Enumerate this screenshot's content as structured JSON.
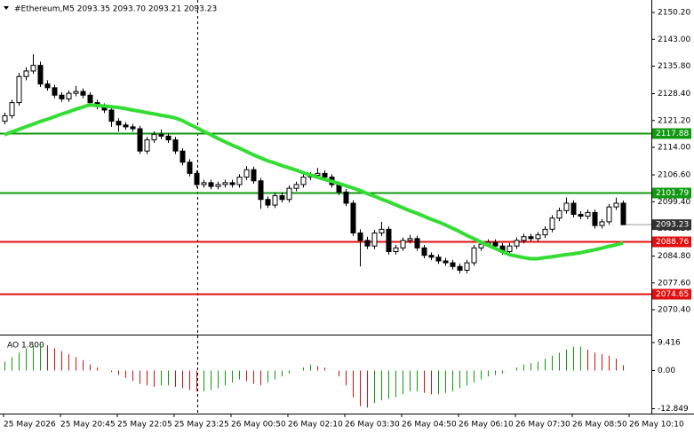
{
  "chart_data": {
    "type": "candlestick",
    "title": "#Ethereum,M5  2093.35 2093.70 2093.21 2093.23",
    "ylim": [
      2063.96,
      2153.55
    ],
    "yticks": [
      {
        "value": 2150.2,
        "label": "2150.20"
      },
      {
        "value": 2143,
        "label": "2143.00"
      },
      {
        "value": 2135.8,
        "label": "2135.80"
      },
      {
        "value": 2128.4,
        "label": "2128.40"
      },
      {
        "value": 2121.2,
        "label": "2121.20"
      },
      {
        "value": 2114,
        "label": "2114.00"
      },
      {
        "value": 2106.6,
        "label": "2106.60"
      },
      {
        "value": 2099.4,
        "label": "2099.40"
      },
      {
        "value": 2092.2,
        "label": "2092.20"
      },
      {
        "value": 2084.8,
        "label": "2084.80"
      },
      {
        "value": 2077.6,
        "label": "2077.60"
      },
      {
        "value": 2070.4,
        "label": "2070.40"
      }
    ],
    "xlabels": [
      "25 May 2026",
      "25 May 20:45",
      "25 May 22:05",
      "25 May 23:25",
      "26 May 00:50",
      "26 May 02:10",
      "26 May 03:30",
      "26 May 04:50",
      "26 May 06:10",
      "26 May 07:30",
      "26 May 08:50",
      "26 May 10:10"
    ],
    "candles": [
      [
        2121,
        2123.3,
        2120.2,
        2122.5
      ],
      [
        2122.5,
        2126.8,
        2121.7,
        2126
      ],
      [
        2126,
        2134,
        2125.2,
        2133
      ],
      [
        2133,
        2135.5,
        2132,
        2134.5
      ],
      [
        2134.5,
        2139,
        2133.7,
        2136
      ],
      [
        2136,
        2137,
        2130.2,
        2131
      ],
      [
        2131,
        2132,
        2129.2,
        2130
      ],
      [
        2130,
        2130.8,
        2127.2,
        2128
      ],
      [
        2128,
        2128.8,
        2126.2,
        2127
      ],
      [
        2127,
        2129.3,
        2126.2,
        2128.5
      ],
      [
        2128.5,
        2130.5,
        2127.7,
        2129
      ],
      [
        2129,
        2129.8,
        2127.2,
        2128
      ],
      [
        2128,
        2128.8,
        2125.2,
        2126
      ],
      [
        2126,
        2126.8,
        2124.2,
        2125
      ],
      [
        2125,
        2125.8,
        2123.2,
        2124
      ],
      [
        2124,
        2124.8,
        2119.5,
        2121
      ],
      [
        2121,
        2121.8,
        2118.2,
        2120
      ],
      [
        2120,
        2120.8,
        2118.7,
        2119.5
      ],
      [
        2119.5,
        2120.3,
        2118.2,
        2119
      ],
      [
        2119,
        2119.8,
        2112.2,
        2113
      ],
      [
        2113,
        2116.8,
        2112.2,
        2116
      ],
      [
        2116,
        2118.3,
        2115.2,
        2117.5
      ],
      [
        2117.5,
        2118.8,
        2116.2,
        2117
      ],
      [
        2117,
        2117.8,
        2115.2,
        2116
      ],
      [
        2116,
        2116.8,
        2112.2,
        2113
      ],
      [
        2113,
        2113.8,
        2109.2,
        2110
      ],
      [
        2110,
        2110.8,
        2106.2,
        2107
      ],
      [
        2107,
        2107.8,
        2103.2,
        2104
      ],
      [
        2104,
        2105.3,
        2103.2,
        2104.5
      ],
      [
        2104.5,
        2105.3,
        2102.7,
        2103.5
      ],
      [
        2103.5,
        2104.8,
        2102.7,
        2104
      ],
      [
        2104,
        2105.3,
        2103.2,
        2104.5
      ],
      [
        2104.5,
        2105.3,
        2103.2,
        2104
      ],
      [
        2104,
        2106.8,
        2103.2,
        2106
      ],
      [
        2106,
        2109,
        2105.2,
        2108
      ],
      [
        2108,
        2108.8,
        2104.2,
        2105
      ],
      [
        2105,
        2105.8,
        2097.5,
        2100
      ],
      [
        2100,
        2100.8,
        2097.7,
        2098.5
      ],
      [
        2098.5,
        2101.8,
        2097.7,
        2101
      ],
      [
        2101,
        2101.8,
        2099.2,
        2100
      ],
      [
        2100,
        2103.8,
        2099.2,
        2103
      ],
      [
        2103,
        2104.8,
        2102.2,
        2104
      ],
      [
        2104,
        2106.8,
        2103.2,
        2106
      ],
      [
        2106,
        2107.3,
        2105.2,
        2106.5
      ],
      [
        2106.5,
        2108.5,
        2105.7,
        2107
      ],
      [
        2107,
        2107.8,
        2105.2,
        2106
      ],
      [
        2106,
        2106.8,
        2103.2,
        2104
      ],
      [
        2104,
        2104.8,
        2101.2,
        2102
      ],
      [
        2102,
        2102.8,
        2098.2,
        2099
      ],
      [
        2099,
        2099.8,
        2090.2,
        2091
      ],
      [
        2091,
        2092,
        2082,
        2089
      ],
      [
        2089,
        2090,
        2086.7,
        2087.5
      ],
      [
        2087.5,
        2091.8,
        2086.7,
        2091
      ],
      [
        2091,
        2094,
        2090.2,
        2092
      ],
      [
        2092,
        2092.8,
        2085.2,
        2086
      ],
      [
        2086,
        2087.8,
        2085.2,
        2087
      ],
      [
        2087,
        2089.8,
        2086.2,
        2089
      ],
      [
        2089,
        2090.5,
        2088.2,
        2089.5
      ],
      [
        2089.5,
        2090.3,
        2086.2,
        2087
      ],
      [
        2087,
        2087.8,
        2084.2,
        2085
      ],
      [
        2085,
        2085.8,
        2083.7,
        2084.5
      ],
      [
        2084.5,
        2085.3,
        2082.7,
        2083.5
      ],
      [
        2083.5,
        2084.3,
        2082.2,
        2083
      ],
      [
        2083,
        2083.8,
        2081.2,
        2082
      ],
      [
        2082,
        2082.8,
        2080.2,
        2081
      ],
      [
        2081,
        2083.8,
        2080.2,
        2083
      ],
      [
        2083,
        2087.8,
        2082.2,
        2087
      ],
      [
        2087,
        2088.8,
        2086.2,
        2088
      ],
      [
        2088,
        2089.3,
        2087.2,
        2088.5
      ],
      [
        2088.5,
        2089.3,
        2086.7,
        2087.5
      ],
      [
        2087.5,
        2088.3,
        2085.2,
        2086
      ],
      [
        2086,
        2088.3,
        2085.2,
        2087.5
      ],
      [
        2087.5,
        2089.8,
        2086.7,
        2089
      ],
      [
        2089,
        2090.8,
        2088.2,
        2090
      ],
      [
        2090,
        2090.8,
        2088.7,
        2089.5
      ],
      [
        2089.5,
        2091.3,
        2088.7,
        2090.5
      ],
      [
        2090.5,
        2092.8,
        2089.7,
        2092
      ],
      [
        2092,
        2095.8,
        2091.2,
        2095
      ],
      [
        2095,
        2097.8,
        2094.2,
        2097
      ],
      [
        2097,
        2100.5,
        2096.2,
        2099
      ],
      [
        2099,
        2099.8,
        2095.2,
        2096
      ],
      [
        2096,
        2096.8,
        2094.7,
        2095.5
      ],
      [
        2095.5,
        2097.3,
        2094.7,
        2096.5
      ],
      [
        2096.5,
        2097.3,
        2092.2,
        2093
      ],
      [
        2093,
        2094.8,
        2092.2,
        2094
      ],
      [
        2094,
        2098.8,
        2093.2,
        2098
      ],
      [
        2098,
        2100.5,
        2097.2,
        2099
      ],
      [
        2099,
        2099.7,
        2093.21,
        2093.23
      ]
    ],
    "ma": [
      2117.4,
      2118.1,
      2118.8,
      2119.5,
      2120.2,
      2120.9,
      2121.5,
      2122.2,
      2122.9,
      2123.5,
      2124.2,
      2124.8,
      2125.4,
      2125.2,
      2125.1,
      2124.9,
      2124.7,
      2124.4,
      2124.0,
      2123.7,
      2123.3,
      2123.0,
      2122.6,
      2122.3,
      2121.9,
      2121.2,
      2120.2,
      2119.3,
      2118.3,
      2117.4,
      2116.4,
      2115.5,
      2114.6,
      2113.8,
      2112.9,
      2112.0,
      2111.2,
      2110.4,
      2109.8,
      2109.1,
      2108.5,
      2107.9,
      2107.2,
      2106.6,
      2106.0,
      2105.4,
      2104.9,
      2104.3,
      2103.7,
      2103.1,
      2102.4,
      2101.6,
      2100.9,
      2100.1,
      2099.4,
      2098.6,
      2097.8,
      2097.0,
      2096.3,
      2095.5,
      2094.7,
      2094.0,
      2093.2,
      2092.3,
      2091.4,
      2090.4,
      2089.5,
      2088.6,
      2087.7,
      2086.9,
      2086.0,
      2085.2,
      2084.8,
      2084.4,
      2084.1,
      2084.1,
      2084.4,
      2084.6,
      2084.9,
      2085.2,
      2085.4,
      2085.7,
      2086.1,
      2086.5,
      2086.9,
      2087.4,
      2087.8,
      2088.3
    ],
    "ma_color": "#33dd33",
    "levels": [
      {
        "value": 2117.88,
        "color": "#129912"
      },
      {
        "value": 2101.79,
        "color": "#129912"
      },
      {
        "value": 2088.76,
        "color": "#e01010"
      },
      {
        "value": 2074.65,
        "color": "#e01010"
      }
    ],
    "last_price": 2093.23,
    "ao_label": "AO 1.800",
    "ao_ylim": [
      -14.5,
      11.5
    ],
    "ao_yticks": [
      9.416,
      {
        "value": 0,
        "label": "0.00"
      },
      -12.849
    ],
    "ao_up_color": "#109a10",
    "ao_down_color": "#d01010",
    "ao": [
      3,
      4.5,
      6,
      7.5,
      8.5,
      9,
      8.5,
      7.5,
      6.5,
      5.5,
      4.5,
      3.5,
      2,
      1,
      0,
      -0.5,
      -1.5,
      -2.5,
      -3.5,
      -4.5,
      -5,
      -5.5,
      -5,
      -5,
      -5.5,
      -6,
      -6.5,
      -7,
      -7,
      -6.5,
      -6,
      -5,
      -4,
      -3,
      -3.5,
      -4.5,
      -5,
      -4,
      -3,
      -2,
      -1,
      0,
      1,
      2,
      1.5,
      1,
      0,
      -2,
      -5,
      -9,
      -12,
      -12.5,
      -11,
      -10,
      -9.5,
      -9,
      -8,
      -7,
      -7,
      -7.5,
      -8,
      -8,
      -7.5,
      -7,
      -6,
      -5,
      -4,
      -3,
      -2,
      -1.5,
      -1,
      0,
      1,
      2,
      2.5,
      3,
      4,
      5,
      6,
      7,
      8,
      8,
      7,
      6,
      5.5,
      5,
      4,
      1.8
    ]
  }
}
